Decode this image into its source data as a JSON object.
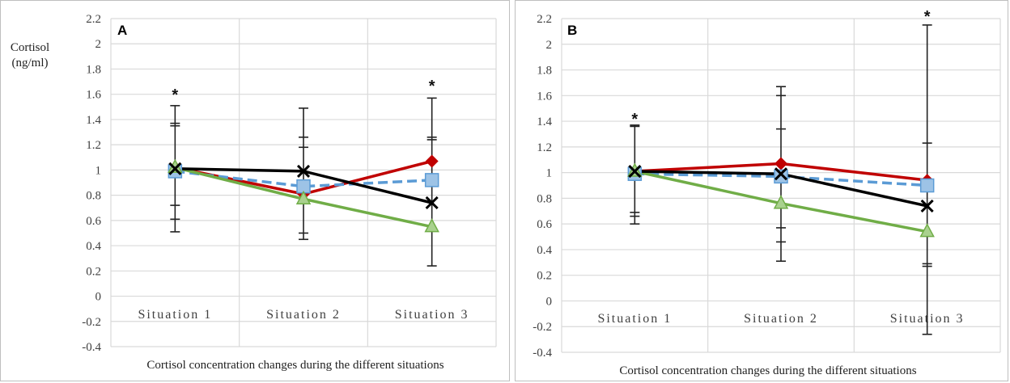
{
  "chart_data": [
    {
      "panel_label": "A",
      "type": "line",
      "ylabel_lines": [
        "Cortisol",
        "(ng/ml)"
      ],
      "xlabel": "Cortisol concentration changes during the different situations",
      "categories": [
        "Situation 1",
        "Situation 2",
        "Situation 3"
      ],
      "ylim": [
        -0.4,
        2.2
      ],
      "yticks": [
        "-0.4",
        "-0.2",
        "0",
        "0.2",
        "0.4",
        "0.6",
        "0.8",
        "1",
        "1.2",
        "1.4",
        "1.6",
        "1.8",
        "2",
        "2.2"
      ],
      "series": [
        {
          "name": "red-diamond",
          "color": "#c00000",
          "marker": "diamond",
          "dash": false,
          "values": [
            1.02,
            0.81,
            1.07
          ]
        },
        {
          "name": "blue-square",
          "color": "#5b9bd5",
          "marker": "square",
          "dash": true,
          "values": [
            0.99,
            0.87,
            0.92
          ]
        },
        {
          "name": "green-triangle",
          "color": "#70ad47",
          "marker": "triangle",
          "dash": false,
          "values": [
            1.02,
            0.77,
            0.55
          ]
        },
        {
          "name": "black-x",
          "color": "#000000",
          "marker": "x",
          "dash": false,
          "values": [
            1.01,
            0.99,
            0.74
          ]
        }
      ],
      "error_bars": [
        {
          "category": 0,
          "low": 0.51,
          "high": 1.51,
          "caps": [
            0.51,
            0.61,
            0.72,
            1.35,
            1.37,
            1.51
          ]
        },
        {
          "category": 1,
          "low": 0.45,
          "high": 1.49,
          "caps": [
            0.45,
            0.5,
            1.18,
            1.26,
            1.49
          ]
        },
        {
          "category": 2,
          "low": 0.24,
          "high": 1.57,
          "caps": [
            0.24,
            1.24,
            1.26,
            1.57
          ]
        }
      ],
      "annotations": [
        {
          "text": "*",
          "category": 0,
          "y": 1.63
        },
        {
          "text": "*",
          "category": 2,
          "y": 1.7
        }
      ]
    },
    {
      "panel_label": "B",
      "type": "line",
      "xlabel": "Cortisol concentration changes during the different situations",
      "categories": [
        "Situation 1",
        "Situation 2",
        "Situation 3"
      ],
      "ylim": [
        -0.4,
        2.2
      ],
      "yticks": [
        "-0.4",
        "-0.2",
        "0",
        "0.2",
        "0.4",
        "0.6",
        "0.8",
        "1",
        "1.2",
        "1.4",
        "1.6",
        "1.8",
        "2",
        "2.2"
      ],
      "series": [
        {
          "name": "red-diamond",
          "color": "#c00000",
          "marker": "diamond",
          "dash": false,
          "values": [
            1.01,
            1.07,
            0.94
          ]
        },
        {
          "name": "blue-square",
          "color": "#5b9bd5",
          "marker": "square",
          "dash": true,
          "values": [
            0.99,
            0.97,
            0.9
          ]
        },
        {
          "name": "green-triangle",
          "color": "#70ad47",
          "marker": "triangle",
          "dash": false,
          "values": [
            1.01,
            0.76,
            0.54
          ]
        },
        {
          "name": "black-x",
          "color": "#000000",
          "marker": "x",
          "dash": false,
          "values": [
            1.01,
            0.99,
            0.74
          ]
        }
      ],
      "error_bars": [
        {
          "category": 0,
          "low": 0.6,
          "high": 1.37,
          "caps": [
            0.6,
            0.66,
            0.69,
            1.36,
            1.37
          ]
        },
        {
          "category": 1,
          "low": 0.31,
          "high": 1.67,
          "caps": [
            0.31,
            0.46,
            0.57,
            1.34,
            1.6,
            1.67
          ]
        },
        {
          "category": 2,
          "low": -0.26,
          "high": 2.15,
          "caps": [
            -0.26,
            0.27,
            0.29,
            1.23,
            2.15
          ]
        }
      ],
      "annotations": [
        {
          "text": "*",
          "category": 0,
          "y": 1.45
        },
        {
          "text": "*",
          "category": 2,
          "y": 2.25
        }
      ]
    }
  ]
}
